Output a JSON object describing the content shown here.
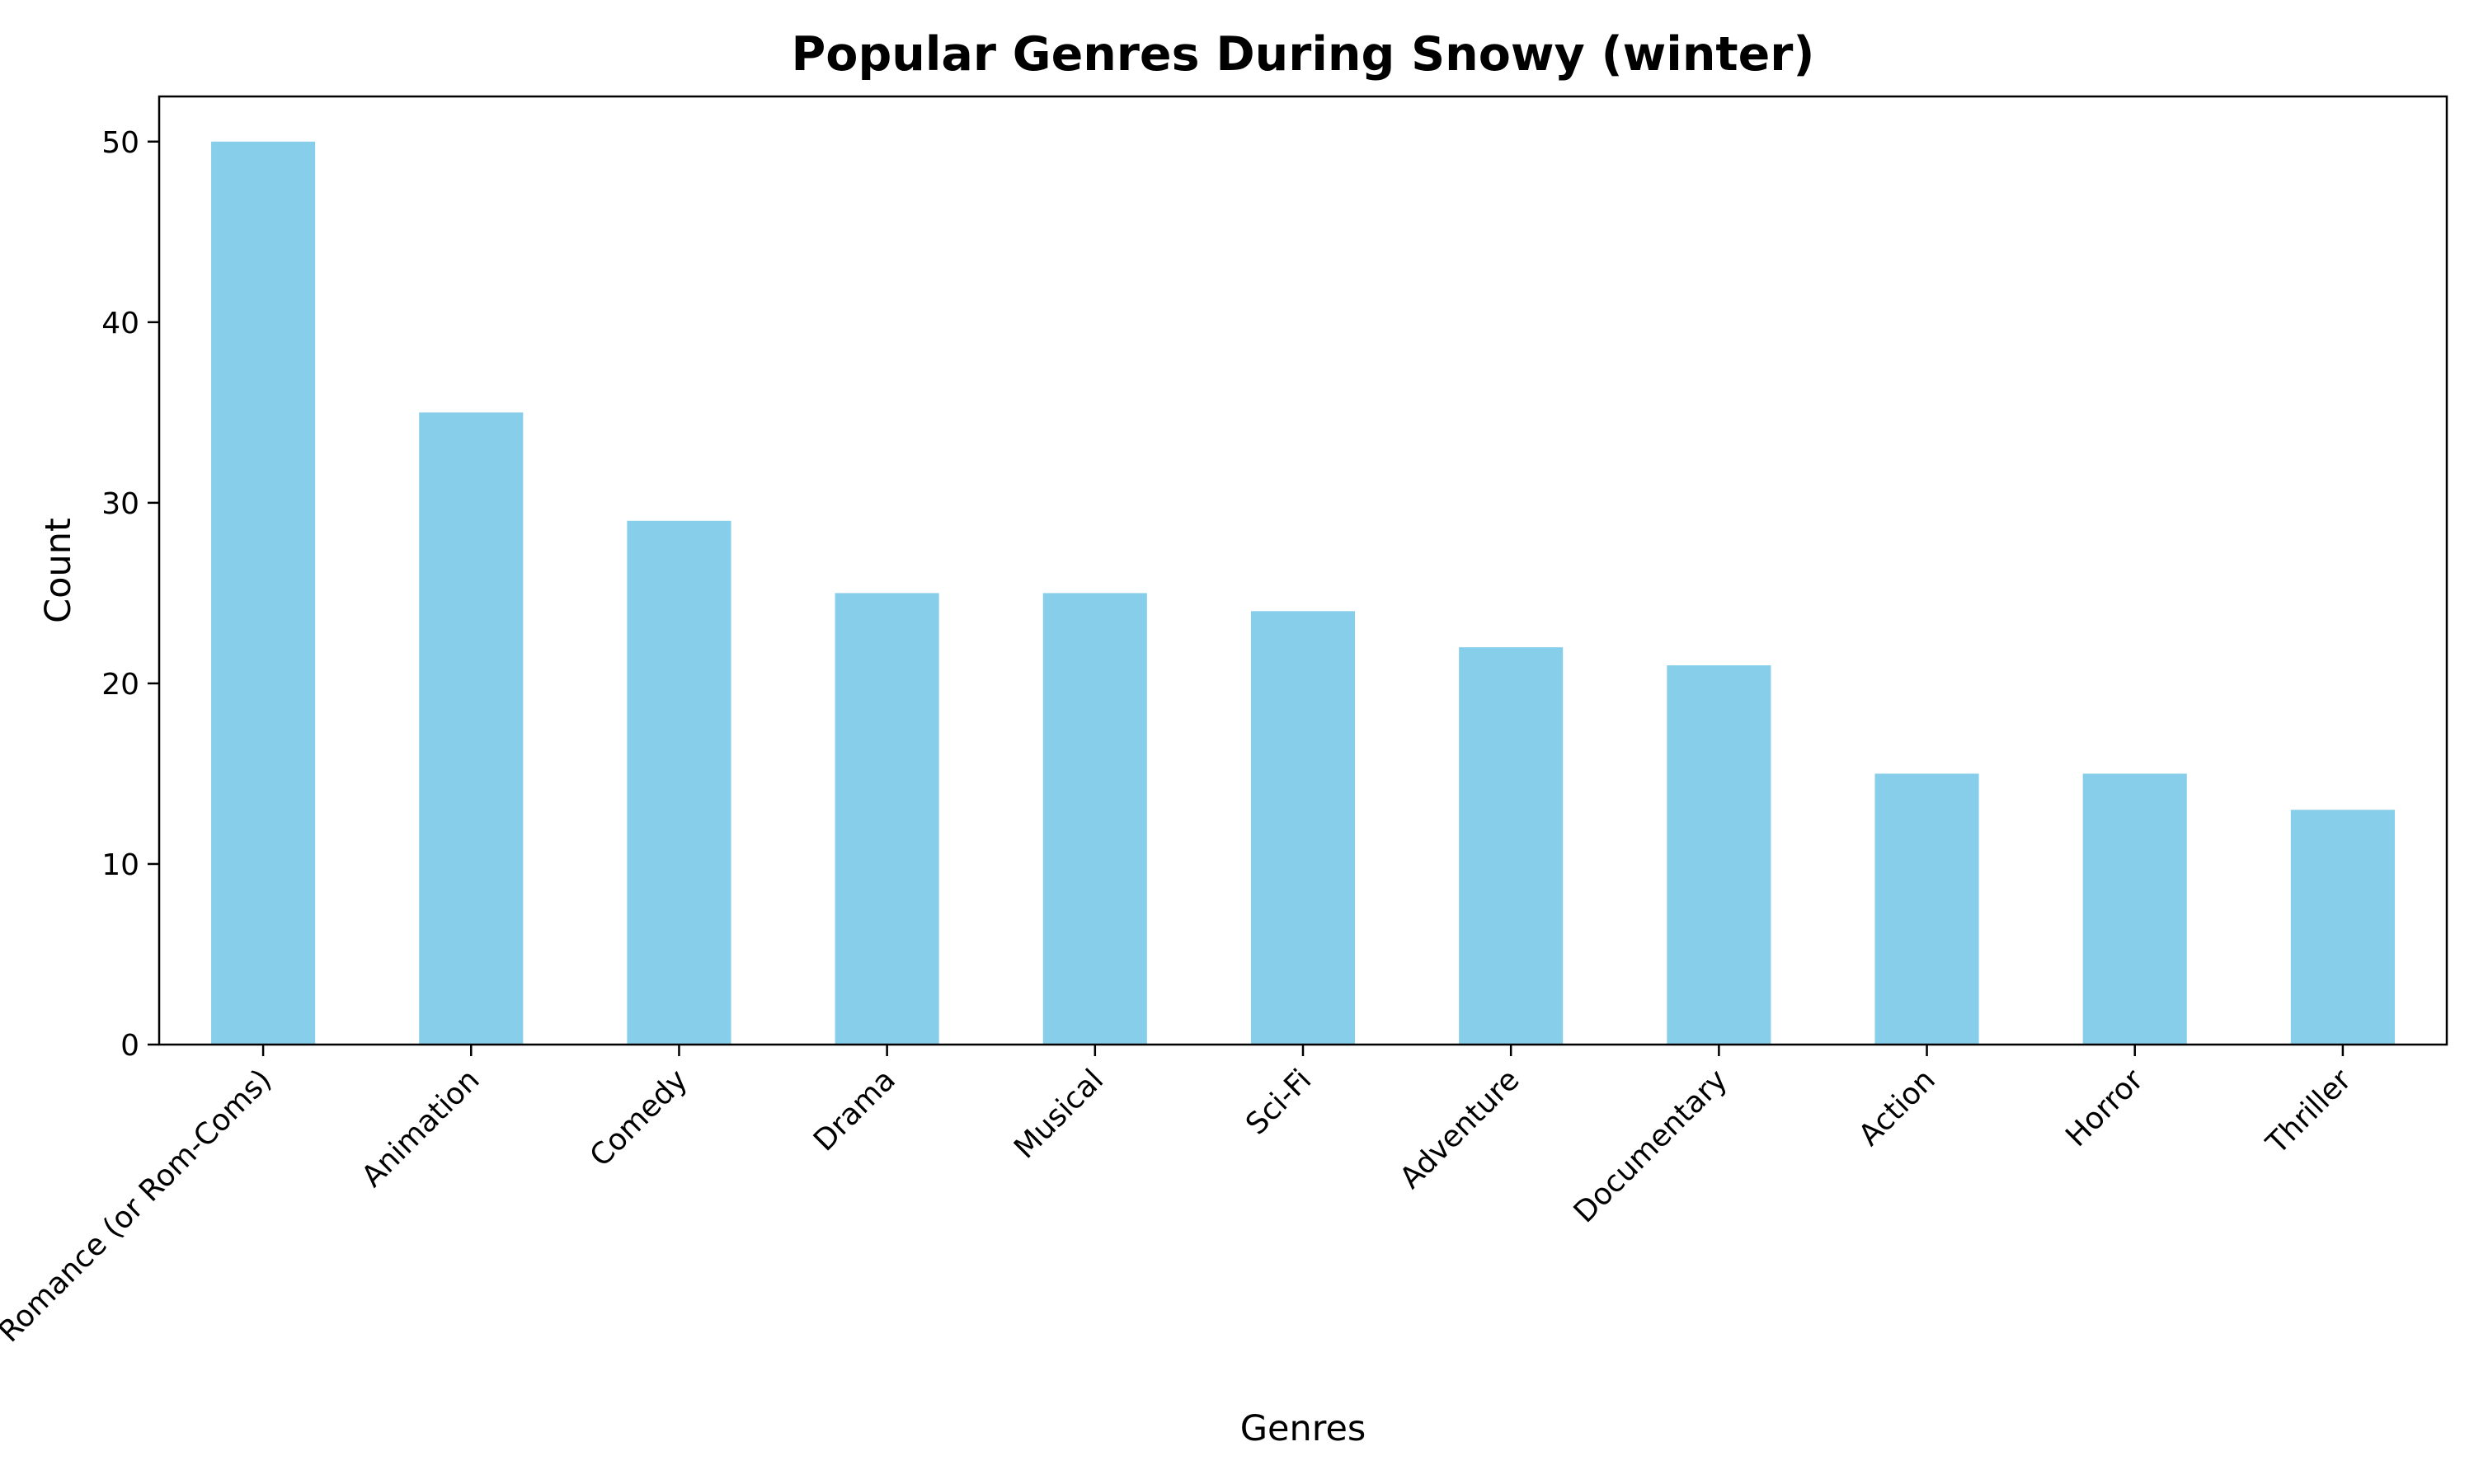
{
  "chart_data": {
    "type": "bar",
    "title": "Popular Genres During Snowy (winter)",
    "xlabel": "Genres",
    "ylabel": "Count",
    "categories": [
      "Romance (or Rom-Coms)",
      "Animation",
      "Comedy",
      "Drama",
      "Musical",
      "Sci-Fi",
      "Adventure",
      "Documentary",
      "Action",
      "Horror",
      "Thriller"
    ],
    "values": [
      50,
      35,
      29,
      25,
      25,
      24,
      22,
      21,
      15,
      15,
      13
    ],
    "ylim": [
      0,
      52.5
    ],
    "yticks": [
      0,
      10,
      20,
      30,
      40,
      50
    ],
    "bar_color": "#87CEEB",
    "grid": false,
    "legend": "none"
  }
}
